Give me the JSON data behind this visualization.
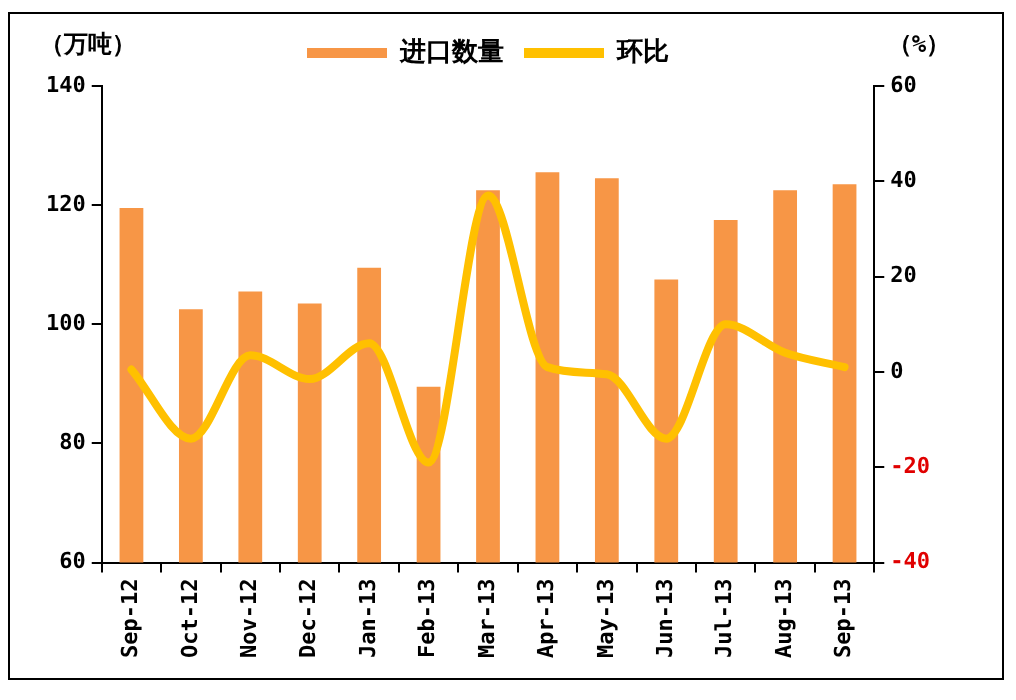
{
  "chart_data": {
    "type": "bar",
    "ylabel": "（万吨）",
    "y2label": "（%）",
    "categories": [
      "Sep-12",
      "Oct-12",
      "Nov-12",
      "Dec-12",
      "Jan-13",
      "Feb-13",
      "Mar-13",
      "Apr-13",
      "May-13",
      "Jun-13",
      "Jul-13",
      "Aug-13",
      "Sep-13"
    ],
    "series": [
      {
        "name": "进口数量",
        "color": "#f79646",
        "values": [
          119.5,
          102.5,
          105.5,
          103.5,
          109.5,
          89.5,
          122.5,
          125.5,
          124.5,
          107.5,
          117.5,
          122.5,
          123.5
        ]
      },
      {
        "name": "环比",
        "type": "line",
        "axis": "y2",
        "color": "#ffc000",
        "values": [
          0.5,
          -14,
          3.5,
          -1.5,
          6,
          -19,
          37,
          1,
          -0.5,
          -14,
          10,
          4,
          1
        ]
      }
    ],
    "ylim": [
      60,
      140
    ],
    "yticks": [
      60,
      80,
      100,
      120,
      140
    ],
    "y2lim": [
      -40,
      60
    ],
    "y2ticks": [
      -40,
      -20,
      0,
      20,
      40,
      60
    ],
    "grid": false,
    "legend": "top",
    "marker": "none",
    "line_style": "solid"
  }
}
